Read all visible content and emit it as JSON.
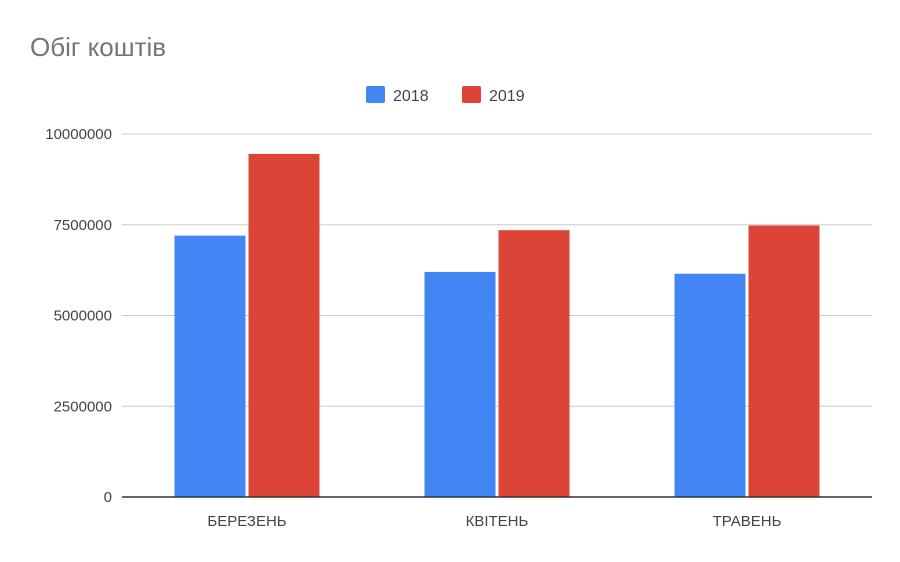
{
  "chart_data": {
    "type": "bar",
    "title": "Обіг коштів",
    "categories": [
      "БЕРЕЗЕНЬ",
      "КВІТЕНЬ",
      "ТРАВЕНЬ"
    ],
    "series": [
      {
        "name": "2018",
        "color": "#4285f4",
        "values": [
          7200000,
          6200000,
          6150000
        ]
      },
      {
        "name": "2019",
        "color": "#db4437",
        "values": [
          9450000,
          7350000,
          7480000
        ]
      }
    ],
    "yticks": [
      "0",
      "2500000",
      "5000000",
      "7500000",
      "10000000"
    ],
    "ylim": [
      0,
      10000000
    ],
    "xlabel": "",
    "ylabel": "",
    "grid": true,
    "legend_position": "top-center"
  }
}
